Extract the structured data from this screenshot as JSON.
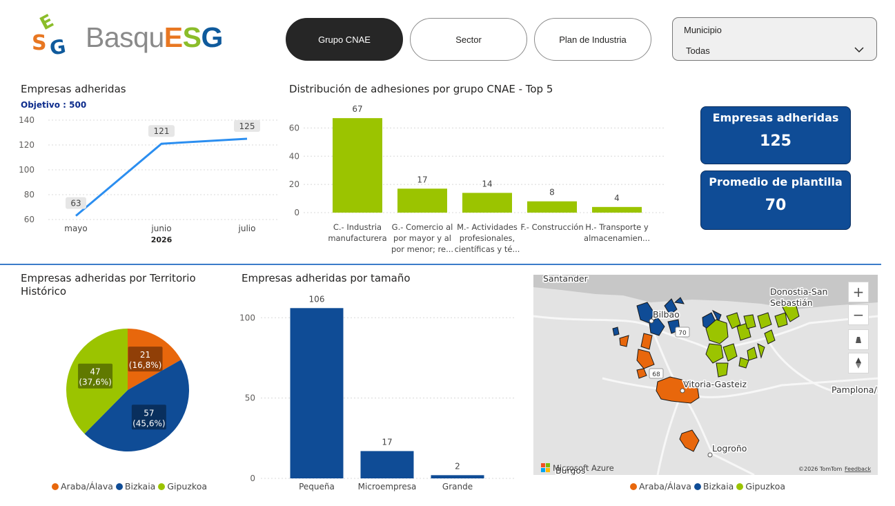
{
  "header": {
    "brand_light": "Basqu",
    "brand_bold_e": "E",
    "brand_bold_s": "S",
    "brand_bold_g": "G",
    "tabs": [
      {
        "label": "Grupo CNAE",
        "active": true
      },
      {
        "label": "Sector",
        "active": false
      },
      {
        "label": "Plan de Industria",
        "active": false
      }
    ],
    "slicer": {
      "label": "Municipio",
      "value": "Todas"
    }
  },
  "line_chart": {
    "title": "Empresas adheridas",
    "objective": "Objetivo : 500",
    "year_label": "2026"
  },
  "cnae_chart": {
    "title": "Distribución de adhesiones por grupo CNAE - Top 5"
  },
  "kpis": [
    {
      "label": "Empresas adheridas",
      "value": "125"
    },
    {
      "label": "Promedio de plantilla",
      "value": "70"
    }
  ],
  "pie_chart": {
    "title_line1": "Empresas adheridas por Territorio",
    "title_line2": "Histórico"
  },
  "size_chart": {
    "title": "Empresas adheridas por tamaño"
  },
  "legend": [
    {
      "label": "Araba/Álava",
      "color": "#e8670c"
    },
    {
      "label": "Bizkaia",
      "color": "#0f4c96"
    },
    {
      "label": "Gipuzkoa",
      "color": "#9bc400"
    }
  ],
  "map": {
    "labels": {
      "santander": "Santander",
      "donostia_1": "Donostia-San",
      "donostia_2": "Sebastián",
      "bilbao": "Bilbao",
      "vitoria": "Vitoria-Gasteiz",
      "pamplona": "Pamplona/Iruñ",
      "logrono": "Logroño",
      "burgos": "Burgos",
      "road_70": "70",
      "road_68": "68"
    },
    "attribution": "Microsoft Azure",
    "copyright": "©2026 TomTom",
    "feedback": "Feedback",
    "controls": {
      "zoom_in": "+",
      "zoom_out": "−"
    }
  },
  "chart_data": [
    {
      "type": "line",
      "title": "Empresas adheridas",
      "categories": [
        "mayo",
        "junio",
        "julio"
      ],
      "values": [
        63,
        121,
        125
      ],
      "xlabel": "2026",
      "yticks": [
        60,
        80,
        100,
        120,
        140
      ],
      "ylim": [
        60,
        140
      ],
      "color": "#2b8ef0",
      "grid": true
    },
    {
      "type": "bar",
      "title": "Distribución de adhesiones por grupo CNAE - Top 5",
      "categories": [
        [
          "C.- Industria",
          "manufacturera"
        ],
        [
          "G.- Comercio al",
          "por mayor y al",
          "por menor; re..."
        ],
        [
          "M.- Actividades",
          "profesionales,",
          "científicas y té..."
        ],
        [
          "F.- Construcción"
        ],
        [
          "H.- Transporte y",
          "almacenamien..."
        ]
      ],
      "values": [
        67,
        17,
        14,
        8,
        4
      ],
      "yticks": [
        0,
        20,
        40,
        60
      ],
      "ylim": [
        0,
        70
      ],
      "color": "#9bc400",
      "grid": true
    },
    {
      "type": "pie",
      "title": "Empresas adheridas por Territorio Histórico",
      "slices": [
        {
          "name": "Araba/Álava",
          "value": 21,
          "label": "21",
          "pct": "(16,8%)",
          "color": "#e8670c"
        },
        {
          "name": "Bizkaia",
          "value": 57,
          "label": "57",
          "pct": "(45,6%)",
          "color": "#0f4c96"
        },
        {
          "name": "Gipuzkoa",
          "value": 47,
          "label": "47",
          "pct": "(37,6%)",
          "color": "#9bc400"
        }
      ],
      "legend": "bottom"
    },
    {
      "type": "bar",
      "title": "Empresas adheridas por tamaño",
      "categories": [
        "Pequeña",
        "Microempresa",
        "Grande"
      ],
      "values": [
        106,
        17,
        2
      ],
      "yticks": [
        0,
        50,
        100
      ],
      "ylim": [
        0,
        110
      ],
      "color": "#0f4c96",
      "grid": true
    }
  ]
}
